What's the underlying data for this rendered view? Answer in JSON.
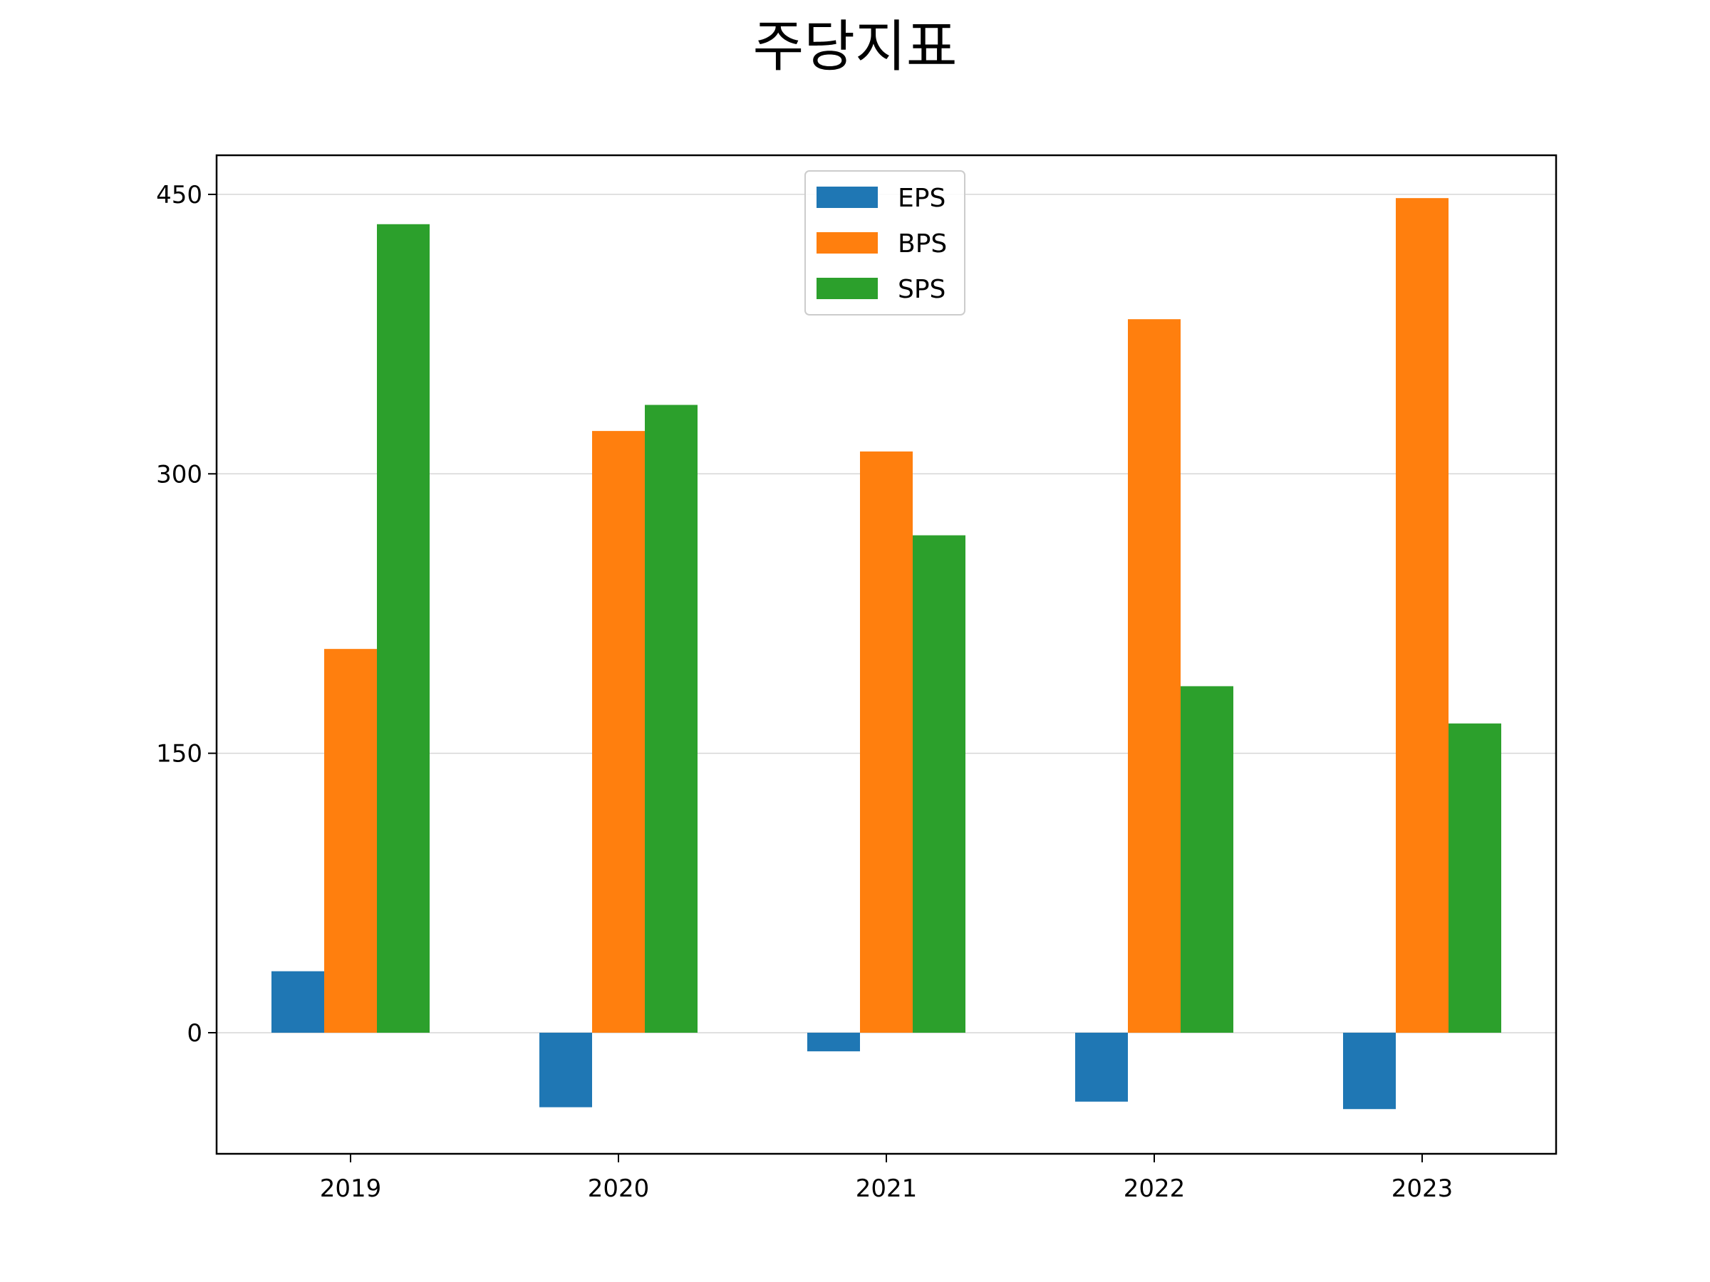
{
  "chart_data": {
    "type": "bar",
    "title": "주당지표",
    "xlabel": "",
    "ylabel": "",
    "categories": [
      "2019",
      "2020",
      "2021",
      "2022",
      "2023"
    ],
    "series": [
      {
        "name": "EPS",
        "color": "#1f77b4",
        "values": [
          33,
          -40,
          -10,
          -37,
          -41
        ]
      },
      {
        "name": "BPS",
        "color": "#ff7f0e",
        "values": [
          206,
          323,
          312,
          383,
          448
        ]
      },
      {
        "name": "SPS",
        "color": "#2ca02c",
        "values": [
          434,
          337,
          267,
          186,
          166
        ]
      }
    ],
    "ylim": [
      -65,
      471
    ],
    "yticks": [
      0,
      150,
      300,
      450
    ],
    "grid": true,
    "legend_position": "top-center"
  }
}
